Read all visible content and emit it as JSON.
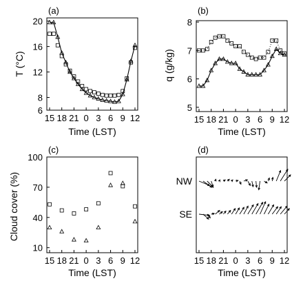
{
  "chart_data": [
    {
      "panel": "(a)",
      "type": "line",
      "xlabel": "Time (LST)",
      "ylabel": "T (°C)",
      "xticks": [
        15,
        18,
        21,
        0,
        3,
        6,
        9,
        12
      ],
      "yticks": [
        6,
        8,
        12,
        16,
        20
      ],
      "ylim": [
        6,
        20.5
      ],
      "x": [
        15,
        16,
        17,
        18,
        19,
        20,
        21,
        22,
        23,
        0,
        1,
        2,
        3,
        4,
        5,
        6,
        7,
        8,
        9,
        10,
        11,
        12
      ],
      "series": [
        {
          "marker": "square",
          "values": [
            18.0,
            18.0,
            16.2,
            14.5,
            13.2,
            12.2,
            11.3,
            10.5,
            9.8,
            9.3,
            9.0,
            8.8,
            8.6,
            8.4,
            8.3,
            8.3,
            8.3,
            8.4,
            9.0,
            11.0,
            13.5,
            15.8
          ]
        },
        {
          "marker": "triangle",
          "style": "solid",
          "values": [
            19.8,
            19.8,
            17.5,
            15.0,
            13.5,
            12.0,
            11.0,
            10.1,
            9.3,
            8.7,
            8.3,
            8.0,
            7.8,
            7.6,
            7.5,
            7.4,
            7.3,
            7.4,
            8.5,
            10.8,
            13.7,
            16.2
          ]
        }
      ]
    },
    {
      "panel": "(b)",
      "type": "line",
      "xlabel": "Time (LST)",
      "ylabel": "q (g/kg)",
      "xticks": [
        15,
        18,
        21,
        0,
        3,
        6,
        9,
        12
      ],
      "yticks": [
        5,
        6,
        7,
        8
      ],
      "ylim": [
        4.85,
        8.05
      ],
      "x": [
        15,
        16,
        17,
        18,
        19,
        20,
        21,
        22,
        23,
        0,
        1,
        2,
        3,
        4,
        5,
        6,
        7,
        8,
        9,
        10,
        11,
        12
      ],
      "series": [
        {
          "marker": "square",
          "style": "dotted",
          "values": [
            7.0,
            7.0,
            7.05,
            7.3,
            7.45,
            7.5,
            7.5,
            7.35,
            7.25,
            7.15,
            7.15,
            6.95,
            6.85,
            6.75,
            6.7,
            6.75,
            6.75,
            6.95,
            7.35,
            7.35,
            7.0,
            6.9
          ]
        },
        {
          "marker": "triangle",
          "style": "solid",
          "values": [
            5.75,
            5.75,
            5.95,
            6.3,
            6.55,
            6.7,
            6.7,
            6.6,
            6.55,
            6.55,
            6.35,
            6.25,
            6.15,
            6.15,
            6.15,
            6.15,
            6.3,
            6.5,
            6.8,
            7.05,
            6.9,
            6.85
          ]
        }
      ]
    },
    {
      "panel": "(c)",
      "type": "scatter",
      "xlabel": "Time (LST)",
      "ylabel": "Cloud cover (%)",
      "xticks": [
        15,
        18,
        21,
        0,
        3,
        6,
        9,
        12
      ],
      "yticks": [
        10,
        40,
        70,
        100
      ],
      "ylim": [
        5,
        100
      ],
      "series": [
        {
          "marker": "square",
          "x": [
            15,
            18,
            21,
            0,
            3,
            6,
            9,
            12
          ],
          "values": [
            53,
            47,
            44,
            48,
            54,
            84,
            71,
            51
          ]
        },
        {
          "marker": "triangle",
          "x": [
            15,
            18,
            21,
            0,
            3,
            6,
            9,
            12
          ],
          "values": [
            30,
            26,
            18,
            17,
            30,
            72,
            74,
            36
          ]
        }
      ]
    },
    {
      "panel": "(d)",
      "type": "quiver",
      "xlabel": "Time (LST)",
      "xticks": [
        15,
        18,
        21,
        0,
        3,
        6,
        9,
        12
      ],
      "rows": [
        {
          "label": "NW",
          "vectors": [
            [
              15,
              0.85,
              -0.35
            ],
            [
              16,
              0.7,
              -0.5
            ],
            [
              17,
              0.5,
              -0.5
            ],
            [
              18,
              0.15,
              -0.45
            ],
            [
              19,
              0.05,
              0.15
            ],
            [
              20,
              0.05,
              0.1
            ],
            [
              21,
              0.15,
              0.1
            ],
            [
              22,
              0.15,
              0.15
            ],
            [
              23,
              0.1,
              0.1
            ],
            [
              0,
              0.2,
              0.05
            ],
            [
              1,
              0.1,
              -0.25
            ],
            [
              2,
              0.3,
              0.1
            ],
            [
              3,
              0.2,
              -0.35
            ],
            [
              4,
              0.1,
              -0.45
            ],
            [
              5,
              0.05,
              -0.5
            ],
            [
              6,
              -0.1,
              -0.7
            ],
            [
              7,
              0.25,
              -0.15
            ],
            [
              8,
              0.1,
              0.25
            ],
            [
              9,
              0.05,
              0.3
            ],
            [
              10,
              0.35,
              0.85
            ],
            [
              11,
              0.6,
              0.95
            ],
            [
              12,
              0.5,
              0.5
            ]
          ]
        },
        {
          "label": "SE",
          "vectors": [
            [
              15,
              0.85,
              -0.1
            ],
            [
              16,
              0.45,
              -0.4
            ],
            [
              17,
              0.25,
              -0.3
            ],
            [
              18,
              0.25,
              0.05
            ],
            [
              19,
              0.35,
              0.3
            ],
            [
              20,
              0.25,
              0.2
            ],
            [
              21,
              0.2,
              0.25
            ],
            [
              22,
              0.25,
              0.3
            ],
            [
              23,
              0.3,
              0.45
            ],
            [
              0,
              0.3,
              0.5
            ],
            [
              1,
              0.35,
              0.55
            ],
            [
              2,
              0.35,
              0.65
            ],
            [
              3,
              0.45,
              0.75
            ],
            [
              4,
              0.5,
              0.85
            ],
            [
              5,
              0.55,
              0.95
            ],
            [
              6,
              0.45,
              1.0
            ],
            [
              7,
              0.4,
              0.8
            ],
            [
              8,
              0.45,
              0.75
            ],
            [
              9,
              0.45,
              0.6
            ],
            [
              10,
              0.4,
              0.6
            ],
            [
              11,
              0.55,
              0.65
            ],
            [
              12,
              0.4,
              0.45
            ]
          ]
        }
      ]
    }
  ]
}
